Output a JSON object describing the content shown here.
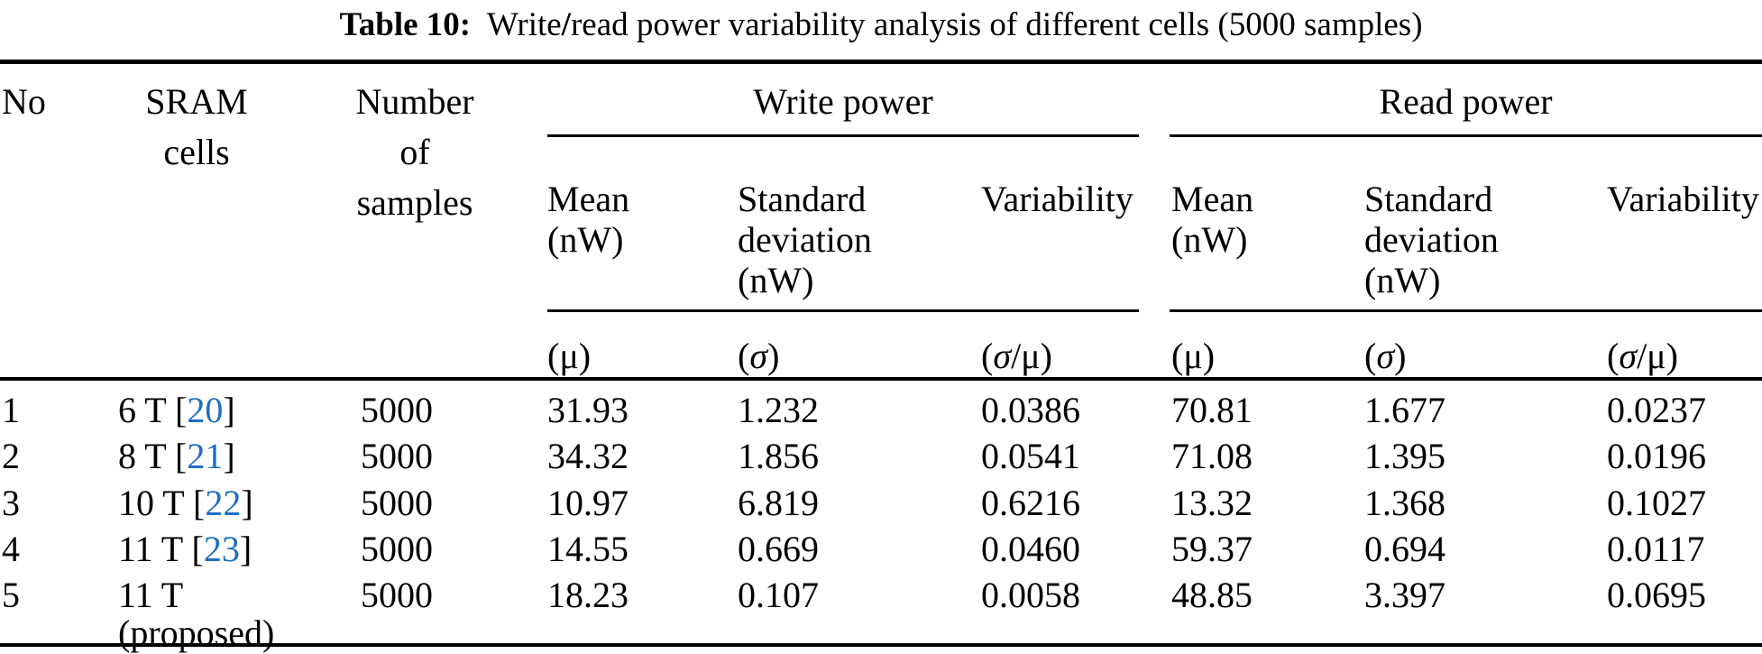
{
  "title": {
    "label": "Table 10:",
    "pre": "  Write",
    "slash": "/",
    "post": "read power variability analysis of different cells (5000 samples)"
  },
  "header": {
    "no": "No",
    "sram": "SRAM\ncells",
    "samples": "Number\nof\nsamples",
    "write_power": "Write power",
    "read_power": "Read power",
    "mean": "Mean\n(nW)",
    "std": "Standard\ndeviation\n(nW)",
    "variability": "Variability",
    "sym_mu": "(μ)",
    "sym_sigma_open": "(",
    "sym_sigma": "σ",
    "sym_sigma_close": ")",
    "sym_ratio_open": "(",
    "sym_ratio_sigma": "σ",
    "sym_ratio_rest": "/μ)"
  },
  "colors": {
    "text": "#000000",
    "cite_blue": "#1d6ec2"
  },
  "rows": [
    {
      "no": "1",
      "cell": "6 T",
      "open": " [",
      "cite": "20",
      "close": "]",
      "note": "",
      "samples": "5000",
      "w_mean": "31.93",
      "w_std": "1.232",
      "w_var": "0.0386",
      "r_mean": "70.81",
      "r_std": "1.677",
      "r_var": "0.0237"
    },
    {
      "no": "2",
      "cell": "8 T",
      "open": " [",
      "cite": "21",
      "close": "]",
      "note": "",
      "samples": "5000",
      "w_mean": "34.32",
      "w_std": "1.856",
      "w_var": "0.0541",
      "r_mean": "71.08",
      "r_std": "1.395",
      "r_var": "0.0196"
    },
    {
      "no": "3",
      "cell": "10 T",
      "open": " [",
      "cite": "22",
      "close": "]",
      "note": "",
      "samples": "5000",
      "w_mean": "10.97",
      "w_std": "6.819",
      "w_var": "0.6216",
      "r_mean": "13.32",
      "r_std": "1.368",
      "r_var": "0.1027"
    },
    {
      "no": "4",
      "cell": "11 T",
      "open": " [",
      "cite": "23",
      "close": "]",
      "note": "",
      "samples": "5000",
      "w_mean": "14.55",
      "w_std": "0.669",
      "w_var": "0.0460",
      "r_mean": "59.37",
      "r_std": "0.694",
      "r_var": "0.0117"
    },
    {
      "no": "5",
      "cell": "11 T",
      "open": "",
      "cite": "",
      "close": "",
      "note": "(proposed)",
      "samples": "5000",
      "w_mean": "18.23",
      "w_std": "0.107",
      "w_var": "0.0058",
      "r_mean": "48.85",
      "r_std": "3.397",
      "r_var": "0.0695"
    }
  ]
}
